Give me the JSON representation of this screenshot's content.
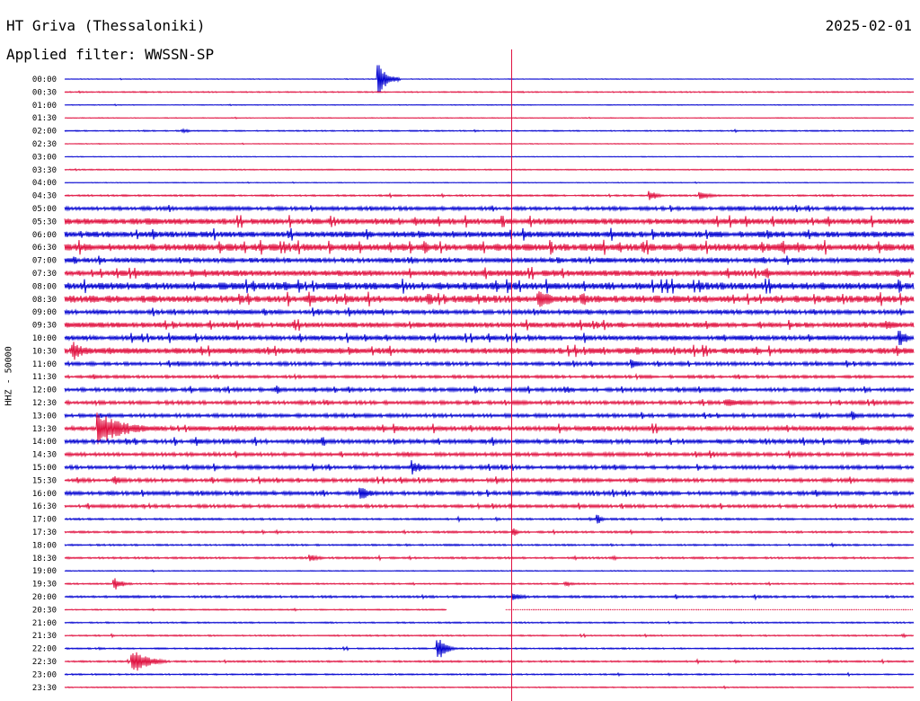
{
  "header": {
    "station": "HT Griva (Thessaloniki)",
    "date": "2025-02-01",
    "filter": "Applied filter: WWSSN-SP"
  },
  "chart_data": {
    "type": "line",
    "title": "HT Griva (Thessaloniki)",
    "ylabel": "HHZ - 50000",
    "xlabel": "",
    "row_labels": [
      "00:00",
      "00:30",
      "01:00",
      "01:30",
      "02:00",
      "02:30",
      "03:00",
      "03:30",
      "04:00",
      "04:30",
      "05:00",
      "05:30",
      "06:00",
      "06:30",
      "07:00",
      "07:30",
      "08:00",
      "08:30",
      "09:00",
      "09:30",
      "10:00",
      "10:30",
      "11:00",
      "11:30",
      "12:00",
      "12:30",
      "13:00",
      "13:30",
      "14:00",
      "14:30",
      "15:00",
      "15:30",
      "16:00",
      "16:30",
      "17:00",
      "17:30",
      "18:00",
      "18:30",
      "19:00",
      "19:30",
      "20:00",
      "20:30",
      "21:00",
      "21:30",
      "22:00",
      "22:30",
      "23:00",
      "23:30"
    ],
    "row_activity": [
      0.3,
      0.5,
      0.3,
      0.3,
      0.5,
      0.3,
      0.3,
      0.5,
      0.3,
      0.7,
      1.5,
      2.5,
      2.5,
      3,
      2,
      2.5,
      3,
      3,
      1.8,
      2.2,
      2,
      2.5,
      1.5,
      1.2,
      1.5,
      1.5,
      1.5,
      2,
      1.8,
      1.5,
      1.5,
      1.5,
      1.6,
      1.3,
      0.8,
      0.8,
      0.7,
      0.8,
      0.4,
      0.6,
      0.9,
      0.5,
      0.6,
      0.6,
      0.6,
      0.7,
      0.6,
      0.5
    ],
    "colors": {
      "even": "#0000d0",
      "odd": "#e0103f",
      "marker": "#e0103f"
    },
    "marker_fraction": 0.527,
    "events": [
      {
        "row": 0,
        "pos": 0.37,
        "amp": 18,
        "dur": 0.025
      },
      {
        "row": 4,
        "pos": 0.14,
        "amp": 2,
        "dur": 0.02
      },
      {
        "row": 9,
        "pos": 0.69,
        "amp": 6,
        "dur": 0.02
      },
      {
        "row": 9,
        "pos": 0.75,
        "amp": 4,
        "dur": 0.03
      },
      {
        "row": 11,
        "pos": 0.1,
        "amp": 4,
        "dur": 0.05
      },
      {
        "row": 11,
        "pos": 0.72,
        "amp": 4,
        "dur": 0.02
      },
      {
        "row": 12,
        "pos": 0.42,
        "amp": 4,
        "dur": 0.02
      },
      {
        "row": 15,
        "pos": 0.15,
        "amp": 5,
        "dur": 0.02
      },
      {
        "row": 16,
        "pos": 0.26,
        "amp": 6,
        "dur": 0.02
      },
      {
        "row": 16,
        "pos": 0.32,
        "amp": 4,
        "dur": 0.03
      },
      {
        "row": 17,
        "pos": 0.43,
        "amp": 7,
        "dur": 0.02
      },
      {
        "row": 17,
        "pos": 0.56,
        "amp": 11,
        "dur": 0.035
      },
      {
        "row": 17,
        "pos": 0.61,
        "amp": 9,
        "dur": 0.02
      },
      {
        "row": 19,
        "pos": 0.27,
        "amp": 5,
        "dur": 0.02
      },
      {
        "row": 19,
        "pos": 0.97,
        "amp": 6,
        "dur": 0.03
      },
      {
        "row": 20,
        "pos": 0.985,
        "amp": 10,
        "dur": 0.02
      },
      {
        "row": 21,
        "pos": 0.01,
        "amp": 12,
        "dur": 0.03
      },
      {
        "row": 22,
        "pos": 0.67,
        "amp": 5,
        "dur": 0.02
      },
      {
        "row": 24,
        "pos": 0.25,
        "amp": 5,
        "dur": 0.01
      },
      {
        "row": 24,
        "pos": 0.59,
        "amp": 5,
        "dur": 0.02
      },
      {
        "row": 25,
        "pos": 0.78,
        "amp": 5,
        "dur": 0.06
      },
      {
        "row": 26,
        "pos": 0.93,
        "amp": 5,
        "dur": 0.01
      },
      {
        "row": 27,
        "pos": 0.04,
        "amp": 18,
        "dur": 0.07
      },
      {
        "row": 28,
        "pos": 0.94,
        "amp": 5,
        "dur": 0.02
      },
      {
        "row": 30,
        "pos": 0.41,
        "amp": 8,
        "dur": 0.03
      },
      {
        "row": 31,
        "pos": 0.06,
        "amp": 5,
        "dur": 0.02
      },
      {
        "row": 32,
        "pos": 0.35,
        "amp": 7,
        "dur": 0.03
      },
      {
        "row": 34,
        "pos": 0.63,
        "amp": 5,
        "dur": 0.01
      },
      {
        "row": 35,
        "pos": 0.53,
        "amp": 5,
        "dur": 0.01
      },
      {
        "row": 37,
        "pos": 0.29,
        "amp": 5,
        "dur": 0.02
      },
      {
        "row": 39,
        "pos": 0.06,
        "amp": 7,
        "dur": 0.02
      },
      {
        "row": 39,
        "pos": 0.59,
        "amp": 3,
        "dur": 0.02
      },
      {
        "row": 40,
        "pos": 0.53,
        "amp": 5,
        "dur": 0.02
      },
      {
        "row": 44,
        "pos": 0.44,
        "amp": 14,
        "dur": 0.02
      },
      {
        "row": 45,
        "pos": 0.08,
        "amp": 14,
        "dur": 0.04
      }
    ]
  }
}
